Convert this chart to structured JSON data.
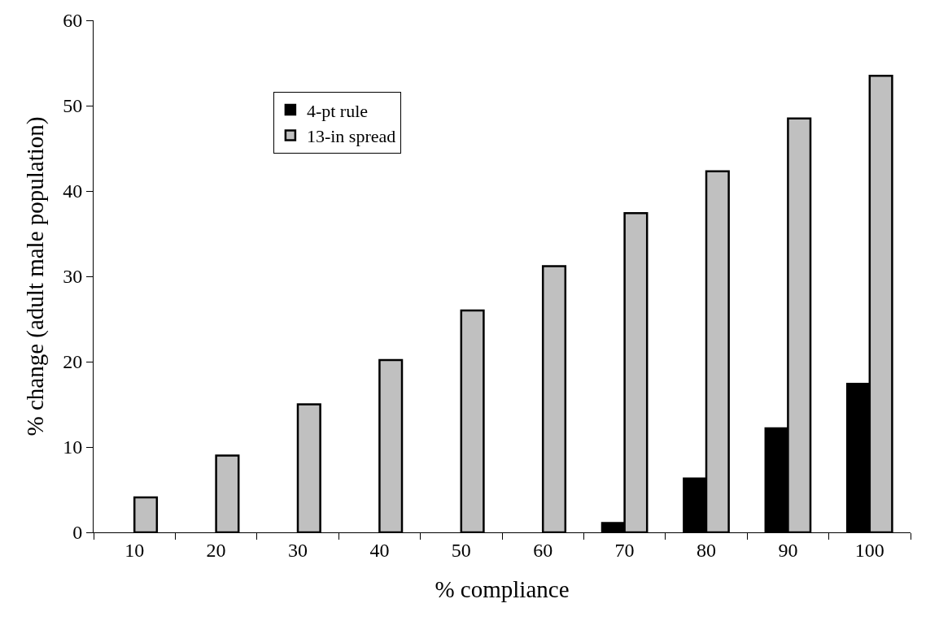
{
  "chart_data": {
    "type": "bar",
    "xlabel": "% compliance",
    "ylabel": "% change (adult male population)",
    "categories": [
      "10",
      "20",
      "30",
      "40",
      "50",
      "60",
      "70",
      "80",
      "90",
      "100"
    ],
    "series": [
      {
        "name": "4-pt rule",
        "color": "#000000",
        "values": [
          null,
          null,
          null,
          null,
          null,
          null,
          1.1,
          6.3,
          12.2,
          17.4
        ]
      },
      {
        "name": "13-in spread",
        "color": "#c0c0c0",
        "values": [
          4.1,
          9,
          15,
          20.2,
          26,
          31.2,
          37.4,
          42.3,
          48.5,
          53.5
        ]
      }
    ],
    "ylim": [
      0,
      60
    ],
    "yticks": [
      0,
      10,
      20,
      30,
      40,
      50,
      60
    ],
    "grid": false,
    "legend": "top left"
  }
}
